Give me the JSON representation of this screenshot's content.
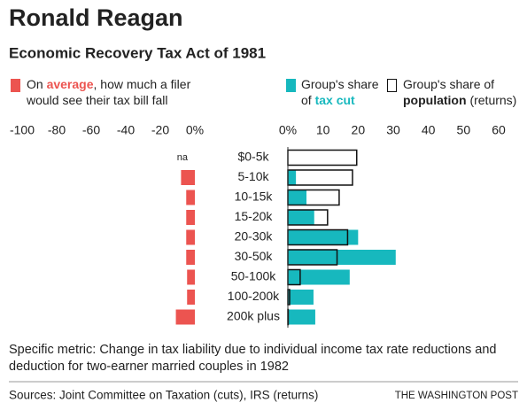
{
  "title": "Ronald Reagan",
  "subtitle": "Economic Recovery Tax Act of 1981",
  "note": "Specific metric: Change in tax liability due to individual income tax rate reductions and deduction for two-earner married couples in 1982",
  "source": "Sources: Joint Committee on Taxation (cuts), IRS (returns)",
  "credit": "THE WASHINGTON POST",
  "chart_data": {
    "type": "bar",
    "orientation": "horizontal",
    "categories": [
      "$0-5k",
      "5-10k",
      "10-15k",
      "15-20k",
      "20-30k",
      "30-50k",
      "50-100k",
      "100-200k",
      "200k plus"
    ],
    "xlim": [
      -100,
      0
    ],
    "xticks": [
      -100,
      -80,
      -60,
      -40,
      -20,
      {
        "value": 0,
        "label": "0%"
      }
    ],
    "x2lim": [
      0,
      60
    ],
    "x2ticks": [
      {
        "value": 0,
        "label": "0%"
      },
      10,
      20,
      30,
      40,
      50,
      60
    ],
    "series": [
      {
        "name_prefix": "On",
        "name": "average",
        "name_suffix": ", how much a filer would see their tax bill fall",
        "color": "#ec5450",
        "values": [
          null,
          -8,
          -5,
          -5,
          -5,
          -5,
          -4.5,
          -4.5,
          -11
        ],
        "value_labels": [
          "na",
          null,
          null,
          null,
          null,
          null,
          null,
          null,
          null
        ]
      },
      {
        "name_prefix": "Group's share of",
        "name": "tax cut",
        "color": "#17b8be",
        "axis": "x2",
        "style": "filled",
        "values": [
          0,
          2.3,
          5.3,
          7.5,
          20,
          30.7,
          17.6,
          7.3,
          7.8
        ]
      },
      {
        "name_prefix": "Group's share of",
        "name": "population",
        "name_suffix": "(returns)",
        "color": "#111111",
        "axis": "x2",
        "style": "outline",
        "values": [
          19.6,
          18.4,
          14.6,
          11.3,
          17,
          14,
          3.5,
          0.5,
          0.1
        ]
      }
    ]
  }
}
